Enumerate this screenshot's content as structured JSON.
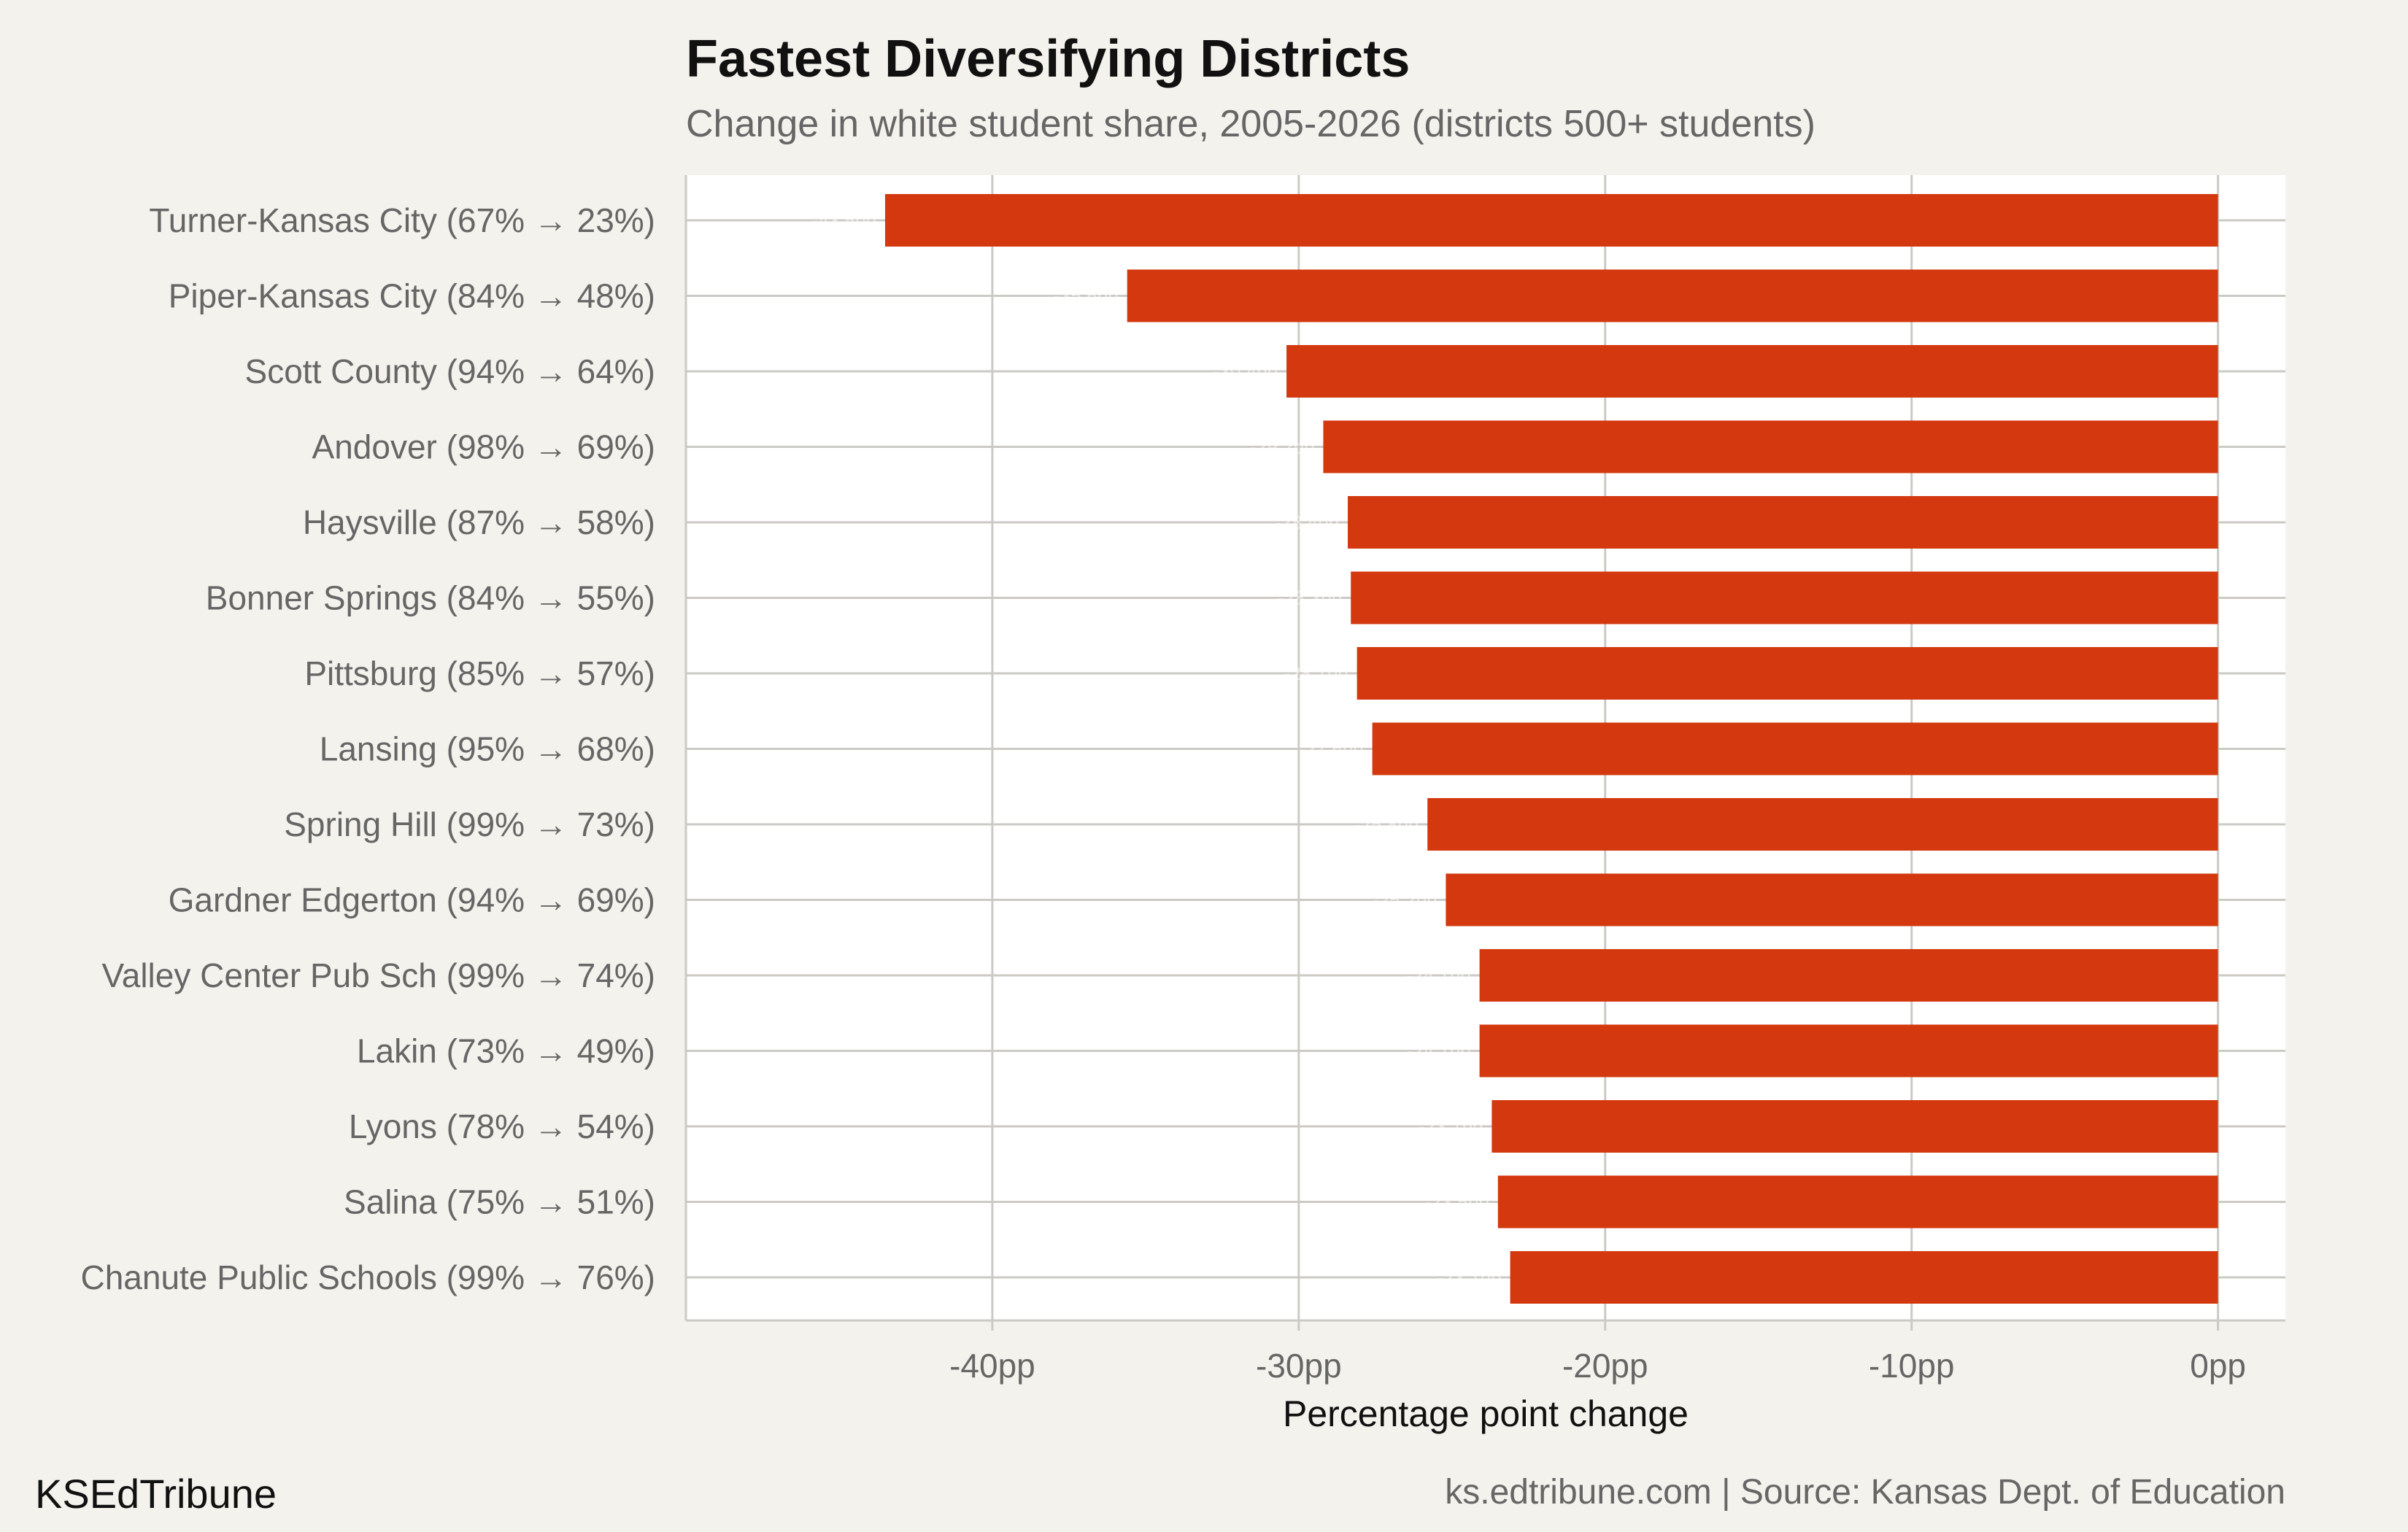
{
  "brand": "KSEdTribune",
  "source": "ks.edtribune.com | Source: Kansas Dept. of Education",
  "colors": {
    "bar": "#d3380f",
    "background": "#f4f2ed",
    "panel": "#ffffff",
    "grid": "#cccac4"
  },
  "chart_data": {
    "type": "bar",
    "orientation": "horizontal",
    "title": "Fastest Diversifying Districts",
    "subtitle": "Change in white student share, 2005-2026 (districts 500+ students)",
    "xlabel": "Percentage point change",
    "ylabel": "",
    "xlim": [
      -50,
      2.2
    ],
    "xticks": [
      -40,
      -30,
      -20,
      -10,
      0
    ],
    "xtick_labels": [
      "-40pp",
      "-30pp",
      "-20pp",
      "-10pp",
      "0pp"
    ],
    "grid": true,
    "categories": [
      "Turner-Kansas City (67% → 23%)",
      "Piper-Kansas City (84% → 48%)",
      "Scott County (94% → 64%)",
      "Andover (98% → 69%)",
      "Haysville (87% → 58%)",
      "Bonner Springs (84% → 55%)",
      "Pittsburg (85% → 57%)",
      "Lansing (95% → 68%)",
      "Spring Hill (99% → 73%)",
      "Gardner Edgerton (94% → 69%)",
      "Valley Center Pub Sch (99% → 74%)",
      "Lakin (73% → 49%)",
      "Lyons (78% → 54%)",
      "Salina (75% → 51%)",
      "Chanute Public Schools (99% → 76%)"
    ],
    "values": [
      -43.5,
      -35.6,
      -30.4,
      -29.2,
      -28.4,
      -28.3,
      -28.1,
      -27.6,
      -25.8,
      -25.2,
      -24.1,
      -24.1,
      -23.7,
      -23.5,
      -23.1
    ],
    "data_labels": [
      "-43.5pp",
      "-35.6pp",
      "-30.4pp",
      "-29.2pp",
      "-28.4pp",
      "-28.3pp",
      "-28.1pp",
      "-27.6pp",
      "-25.8pp",
      "-25.2pp",
      "-24.1pp",
      "-24.1pp",
      "-23.7pp",
      "-23.5pp",
      "-23.1pp"
    ]
  }
}
